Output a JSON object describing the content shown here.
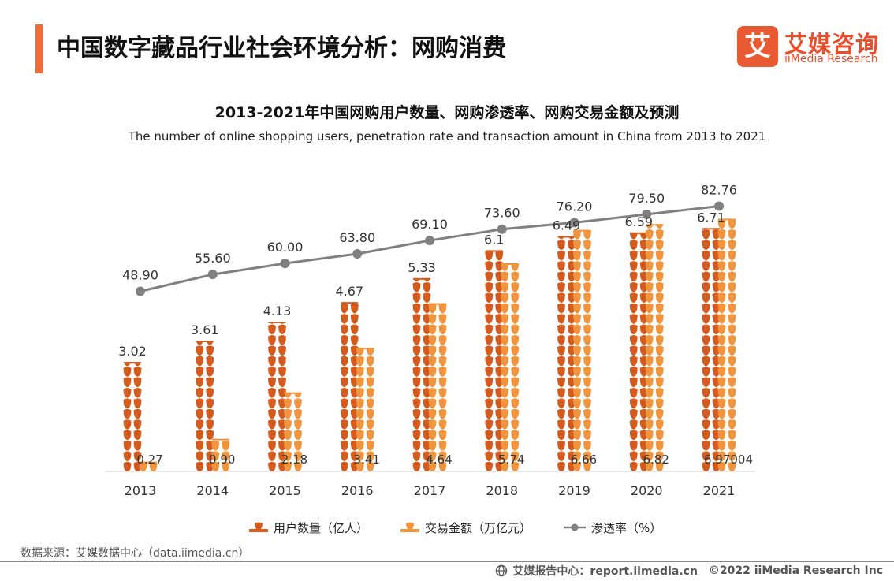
{
  "header": {
    "title": "中国数字藏品行业社会环境分析：网购消费",
    "logo_mark": "艾",
    "logo_cn": "艾媒咨询",
    "logo_en": "iiMedia Research"
  },
  "colors": {
    "accent": "#f26b3a",
    "users_series": "#d45a1e",
    "amount_series": "#f0953e",
    "rate_series": "#808080"
  },
  "chart_data": {
    "type": "bar",
    "title": "2013-2021年中国网购用户数量、网购渗透率、网购交易金额及预测",
    "subtitle": "The number of online shopping users, penetration rate and transaction amount in China from 2013 to 2021",
    "categories": [
      "2013",
      "2014",
      "2015",
      "2016",
      "2017",
      "2018",
      "2019",
      "2020",
      "2021"
    ],
    "series": [
      {
        "name": "用户数量（亿人）",
        "kind": "pictorial-bar",
        "icon": "person-icon",
        "values": [
          3.02,
          3.61,
          4.13,
          4.67,
          5.33,
          6.1,
          6.49,
          6.59,
          6.71
        ],
        "labels": [
          "3.02",
          "3.61",
          "4.13",
          "4.67",
          "5.33",
          "6.1",
          "6.49",
          "6.59",
          "6.71"
        ]
      },
      {
        "name": "交易金额（万亿元）",
        "kind": "pictorial-bar",
        "icon": "person-icon",
        "values": [
          0.27,
          0.9,
          2.18,
          3.41,
          4.64,
          5.74,
          6.66,
          6.82,
          6.97004
        ],
        "labels": [
          "0.27",
          "0.90",
          "2.18",
          "3.41",
          "4.64",
          "5.74",
          "6.66",
          "6.82",
          "6.97004"
        ]
      },
      {
        "name": "渗透率（%）",
        "kind": "line",
        "values": [
          48.9,
          55.6,
          60.0,
          63.8,
          69.1,
          73.6,
          76.2,
          79.5,
          82.76
        ],
        "labels": [
          "48.90",
          "55.60",
          "60.00",
          "63.80",
          "69.10",
          "73.60",
          "76.20",
          "79.50",
          "82.76"
        ]
      }
    ],
    "legend_position": "bottom",
    "grid": false
  },
  "footer": {
    "source": "数据来源：艾媒数据中心（data.iimedia.cn）",
    "report_center": "艾媒报告中心：report.iimedia.cn",
    "copyright": "©2022  iiMedia Research  Inc"
  }
}
